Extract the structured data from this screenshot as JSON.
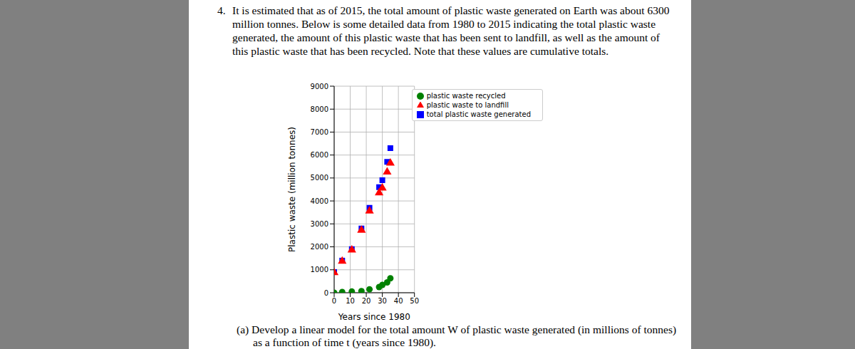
{
  "problem": {
    "number": "4.",
    "lines": [
      "It is estimated that as of 2015, the total amount of plastic waste generated on Earth was about 6300",
      "million tonnes.  Below is some detailed data from 1980 to 2015 indicating the total plastic waste",
      "generated, the amount of this plastic waste that has been sent to landfill, as well as the amount of",
      "this plastic waste that has been recycled. Note that these values are cumulative totals."
    ]
  },
  "part_a": {
    "lines": [
      "(a) Develop a linear model for the total amount W of plastic waste generated (in millions of tonnes)",
      "as a function of time t (years since 1980)."
    ]
  },
  "chart_data": {
    "type": "scatter",
    "x_label": "Years since 1980",
    "y_label": "Plastic waste (million tonnes)",
    "x": [
      0,
      5,
      11,
      17,
      22,
      28,
      30,
      33,
      35
    ],
    "series": [
      {
        "name": "total plastic waste generated",
        "color": "#0000ff",
        "marker": "square",
        "values": [
          900,
          1400,
          1900,
          2800,
          3700,
          4600,
          4900,
          5700,
          6300
        ]
      },
      {
        "name": "plastic waste to landfill",
        "color": "#ff0000",
        "marker": "triangle",
        "values": [
          880,
          1370,
          1860,
          2720,
          3560,
          4350,
          4560,
          5260,
          5650
        ]
      },
      {
        "name": "plastic waste recycled",
        "color": "#008000",
        "marker": "circle",
        "values": [
          0,
          30,
          50,
          70,
          150,
          250,
          340,
          450,
          630
        ]
      }
    ],
    "xlim": [
      0,
      50
    ],
    "xticks": [
      0,
      10,
      20,
      30,
      40,
      50
    ],
    "ylim": [
      0,
      9000
    ],
    "yticks": [
      0,
      1000,
      2000,
      3000,
      4000,
      5000,
      6000,
      7000,
      8000,
      9000
    ],
    "grid": true,
    "legend": "upper right"
  }
}
